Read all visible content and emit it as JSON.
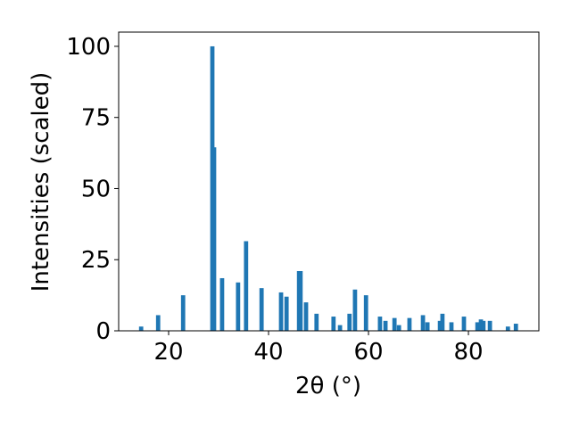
{
  "chart_data": {
    "type": "bar",
    "x_label": "2θ (°)",
    "y_label": "Intensities (scaled)",
    "x": [
      14.5,
      17.9,
      22.9,
      28.75,
      29.1,
      30.7,
      33.9,
      35.5,
      38.6,
      42.5,
      43.6,
      46.1,
      46.4,
      47.5,
      49.6,
      53.0,
      54.3,
      56.2,
      57.3,
      59.5,
      62.3,
      63.4,
      65.2,
      66.1,
      68.2,
      70.9,
      71.8,
      74.3,
      74.8,
      76.6,
      79.1,
      81.8,
      82.5,
      83.0,
      84.3,
      87.9,
      89.5
    ],
    "values": [
      1.5,
      5.5,
      12.5,
      100,
      64.5,
      18.5,
      17,
      31.5,
      15,
      13.5,
      12,
      21,
      21,
      10,
      6,
      5,
      2,
      6,
      14.5,
      12.5,
      5,
      3.5,
      4.5,
      2,
      4.5,
      5.5,
      3,
      3.5,
      6,
      3,
      5,
      3,
      4,
      3.5,
      3.5,
      1.5,
      2.5
    ],
    "color": "#1f77b4",
    "xlim": [
      10,
      94.1
    ],
    "ylim": [
      0,
      105
    ],
    "xticks": [
      20,
      40,
      60,
      80
    ],
    "yticks": [
      0,
      25,
      50,
      75,
      100
    ]
  }
}
